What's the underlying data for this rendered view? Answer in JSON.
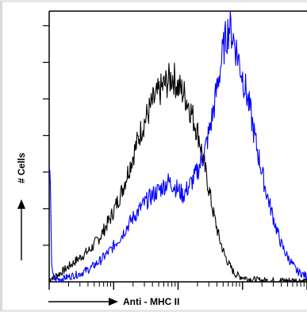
{
  "chart_data": {
    "type": "line",
    "title": "",
    "xlabel": "Anti - MHC II",
    "ylabel": "# Cells",
    "x_scale": "log",
    "xlim": [
      0,
      100
    ],
    "ylim": [
      0,
      100
    ],
    "grid": false,
    "legend": "none",
    "series": [
      {
        "color": "#000000",
        "x": [
          0,
          4,
          8,
          12,
          16,
          20,
          24,
          28,
          32,
          36,
          40,
          44,
          46,
          48,
          50,
          52,
          54,
          56,
          58,
          60,
          62,
          64,
          66,
          68,
          70,
          72,
          74,
          78,
          82,
          86,
          90,
          94,
          98,
          100
        ],
        "y": [
          1,
          3,
          6,
          9,
          12,
          17,
          24,
          33,
          45,
          57,
          66,
          72,
          74,
          76,
          72,
          70,
          66,
          60,
          54,
          44,
          34,
          24,
          16,
          10,
          6,
          3,
          2,
          1,
          0.5,
          0.5,
          0.5,
          0.5,
          0.5,
          0.5
        ]
      },
      {
        "color": "#0000ff",
        "x": [
          0,
          0.5,
          1,
          2,
          4,
          8,
          12,
          16,
          20,
          24,
          28,
          32,
          36,
          40,
          44,
          46,
          48,
          50,
          52,
          54,
          56,
          58,
          60,
          62,
          64,
          66,
          68,
          70,
          72,
          74,
          76,
          78,
          80,
          82,
          84,
          86,
          88,
          90,
          92,
          94,
          96,
          98,
          100
        ],
        "y": [
          38,
          38,
          4,
          1,
          1,
          2,
          3,
          5,
          8,
          12,
          17,
          23,
          28,
          32,
          35,
          37,
          36,
          34,
          32,
          35,
          38,
          42,
          47,
          55,
          65,
          77,
          88,
          95,
          88,
          80,
          72,
          63,
          52,
          43,
          34,
          27,
          20,
          14,
          10,
          7,
          4,
          3,
          2
        ]
      }
    ]
  }
}
